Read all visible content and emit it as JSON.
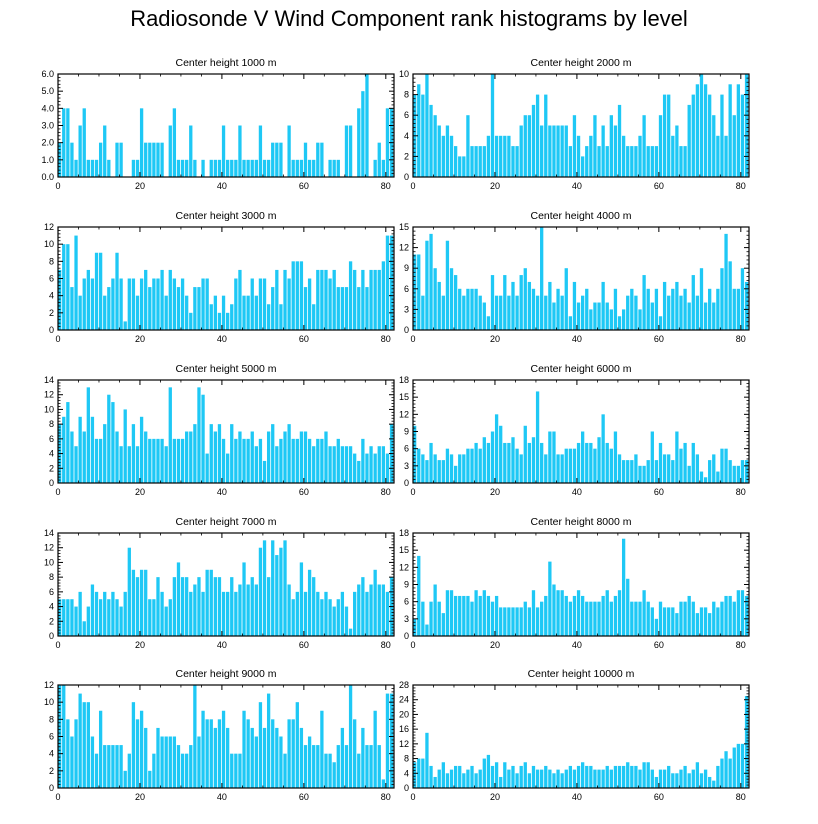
{
  "title": "Radiosonde V Wind Component rank histograms by level",
  "bar_color": "#1ec8f5",
  "chart_data": [
    {
      "type": "bar",
      "title": "Center height 1000 m",
      "xlim": [
        0,
        82
      ],
      "ylim": [
        0,
        6
      ],
      "yticks": [
        "0.0",
        "1.0",
        "2.0",
        "3.0",
        "4.0",
        "5.0",
        "6.0"
      ],
      "xticks": [
        0,
        20,
        40,
        60,
        80
      ],
      "values": [
        2,
        4,
        4,
        2,
        1,
        3,
        4,
        1,
        1,
        1,
        2,
        3,
        1,
        0,
        2,
        2,
        0,
        0,
        1,
        1,
        4,
        2,
        2,
        2,
        2,
        2,
        0,
        3,
        4,
        1,
        1,
        1,
        3,
        1,
        0,
        1,
        0,
        1,
        1,
        1,
        3,
        1,
        1,
        1,
        3,
        1,
        1,
        1,
        1,
        3,
        1,
        1,
        2,
        2,
        2,
        0,
        3,
        1,
        1,
        1,
        2,
        1,
        1,
        2,
        2,
        0,
        1,
        1,
        1,
        0,
        3,
        3,
        0,
        4,
        5,
        6,
        0,
        1,
        2,
        1,
        4,
        4
      ]
    },
    {
      "type": "bar",
      "title": "Center height 2000 m",
      "xlim": [
        0,
        82
      ],
      "ylim": [
        0,
        10
      ],
      "yticks": [
        "0",
        "2",
        "4",
        "6",
        "8",
        "10"
      ],
      "xticks": [
        0,
        20,
        40,
        60,
        80
      ],
      "values": [
        8,
        9,
        8,
        10,
        7,
        6,
        5,
        4,
        5,
        4,
        3,
        2,
        2,
        6,
        3,
        3,
        3,
        3,
        4,
        10,
        4,
        4,
        4,
        4,
        3,
        3,
        5,
        6,
        6,
        7,
        8,
        5,
        8,
        5,
        5,
        5,
        5,
        5,
        3,
        6,
        4,
        2,
        3,
        4,
        6,
        3,
        5,
        3,
        6,
        5,
        7,
        4,
        3,
        3,
        3,
        4,
        6,
        3,
        3,
        3,
        6,
        8,
        8,
        4,
        5,
        3,
        3,
        7,
        8,
        9,
        10,
        9,
        8,
        6,
        4,
        8,
        4,
        9,
        6,
        9,
        8,
        10
      ]
    },
    {
      "type": "bar",
      "title": "Center height 3000 m",
      "xlim": [
        0,
        82
      ],
      "ylim": [
        0,
        12
      ],
      "yticks": [
        "0",
        "2",
        "4",
        "6",
        "8",
        "10",
        "12"
      ],
      "xticks": [
        0,
        20,
        40,
        60,
        80
      ],
      "values": [
        7,
        10,
        10,
        5,
        11,
        4,
        6,
        7,
        6,
        9,
        9,
        4,
        5,
        6,
        9,
        6,
        1,
        6,
        6,
        4,
        6,
        7,
        5,
        6,
        6,
        7,
        4,
        7,
        6,
        5,
        6,
        4,
        2,
        5,
        5,
        6,
        6,
        3,
        4,
        2,
        4,
        2,
        3,
        6,
        7,
        4,
        4,
        6,
        4,
        6,
        6,
        3,
        5,
        7,
        3,
        7,
        6,
        8,
        8,
        8,
        5,
        6,
        3,
        7,
        7,
        7,
        6,
        7,
        5,
        5,
        5,
        8,
        7,
        5,
        7,
        5,
        7,
        7,
        7,
        8,
        11,
        11
      ]
    },
    {
      "type": "bar",
      "title": "Center height 4000 m",
      "xlim": [
        0,
        82
      ],
      "ylim": [
        0,
        15
      ],
      "yticks": [
        "0",
        "3",
        "6",
        "9",
        "12",
        "15"
      ],
      "xticks": [
        0,
        20,
        40,
        60,
        80
      ],
      "values": [
        11,
        11,
        5,
        13,
        14,
        9,
        7,
        5,
        13,
        9,
        8,
        6,
        5,
        6,
        6,
        6,
        5,
        4,
        2,
        8,
        5,
        5,
        8,
        5,
        7,
        5,
        8,
        9,
        7,
        6,
        5,
        15,
        5,
        7,
        4,
        6,
        5,
        9,
        2,
        7,
        4,
        5,
        6,
        3,
        4,
        4,
        7,
        4,
        3,
        6,
        2,
        3,
        5,
        6,
        5,
        3,
        8,
        6,
        4,
        6,
        2,
        7,
        5,
        6,
        7,
        5,
        6,
        4,
        8,
        5,
        9,
        4,
        6,
        4,
        6,
        9,
        14,
        10,
        6,
        6,
        9,
        7
      ]
    },
    {
      "type": "bar",
      "title": "Center height 5000 m",
      "xlim": [
        0,
        82
      ],
      "ylim": [
        0,
        14
      ],
      "yticks": [
        "0",
        "2",
        "4",
        "6",
        "8",
        "10",
        "12",
        "14"
      ],
      "xticks": [
        0,
        20,
        40,
        60,
        80
      ],
      "values": [
        8,
        9,
        11,
        7,
        5,
        9,
        7,
        13,
        9,
        6,
        6,
        8,
        12,
        11,
        7,
        5,
        10,
        5,
        8,
        5,
        9,
        7,
        6,
        6,
        6,
        6,
        5,
        13,
        6,
        6,
        6,
        7,
        7,
        8,
        13,
        12,
        4,
        8,
        7,
        8,
        6,
        4,
        8,
        6,
        7,
        6,
        6,
        7,
        5,
        6,
        3,
        7,
        8,
        5,
        6,
        7,
        8,
        6,
        6,
        7,
        7,
        6,
        5,
        6,
        6,
        7,
        5,
        5,
        6,
        5,
        5,
        5,
        4,
        3,
        6,
        4,
        5,
        4,
        5,
        5,
        4,
        8
      ]
    },
    {
      "type": "bar",
      "title": "Center height 6000 m",
      "xlim": [
        0,
        82
      ],
      "ylim": [
        0,
        18
      ],
      "yticks": [
        "0",
        "3",
        "6",
        "9",
        "12",
        "15",
        "18"
      ],
      "xticks": [
        0,
        20,
        40,
        60,
        80
      ],
      "values": [
        10,
        6,
        5,
        4,
        7,
        5,
        4,
        4,
        6,
        5,
        3,
        5,
        5,
        6,
        6,
        7,
        6,
        8,
        7,
        9,
        12,
        10,
        7,
        7,
        8,
        6,
        5,
        10,
        7,
        8,
        16,
        7,
        5,
        9,
        9,
        5,
        5,
        6,
        6,
        6,
        7,
        9,
        7,
        7,
        6,
        8,
        12,
        7,
        6,
        9,
        5,
        4,
        4,
        4,
        5,
        3,
        3,
        4,
        9,
        4,
        7,
        5,
        5,
        4,
        9,
        6,
        7,
        3,
        7,
        5,
        2,
        1,
        4,
        5,
        2,
        6,
        6,
        4,
        3,
        3,
        4,
        4
      ]
    },
    {
      "type": "bar",
      "title": "Center height 7000 m",
      "xlim": [
        0,
        82
      ],
      "ylim": [
        0,
        14
      ],
      "yticks": [
        "0",
        "2",
        "4",
        "6",
        "8",
        "10",
        "12",
        "14"
      ],
      "xticks": [
        0,
        20,
        40,
        60,
        80
      ],
      "values": [
        5,
        5,
        5,
        5,
        4,
        6,
        2,
        4,
        7,
        6,
        5,
        6,
        5,
        6,
        5,
        4,
        6,
        12,
        9,
        8,
        9,
        9,
        5,
        5,
        8,
        6,
        4,
        5,
        8,
        10,
        8,
        8,
        6,
        7,
        8,
        6,
        9,
        9,
        8,
        8,
        6,
        6,
        8,
        6,
        7,
        10,
        7,
        8,
        7,
        12,
        13,
        8,
        13,
        11,
        12,
        13,
        7,
        5,
        6,
        10,
        6,
        9,
        8,
        6,
        5,
        6,
        5,
        4,
        5,
        6,
        4,
        1,
        6,
        7,
        8,
        6,
        7,
        9,
        7,
        7,
        6,
        8
      ]
    },
    {
      "type": "bar",
      "title": "Center height 8000 m",
      "xlim": [
        0,
        82
      ],
      "ylim": [
        0,
        18
      ],
      "yticks": [
        "0",
        "3",
        "6",
        "9",
        "12",
        "15",
        "18"
      ],
      "xticks": [
        0,
        20,
        40,
        60,
        80
      ],
      "values": [
        3,
        14,
        6,
        2,
        6,
        9,
        6,
        4,
        8,
        8,
        7,
        7,
        7,
        7,
        6,
        8,
        7,
        8,
        7,
        6,
        7,
        5,
        5,
        5,
        5,
        5,
        5,
        6,
        5,
        8,
        5,
        6,
        7,
        13,
        9,
        8,
        8,
        7,
        6,
        7,
        8,
        7,
        6,
        6,
        6,
        6,
        7,
        8,
        6,
        7,
        8,
        17,
        10,
        6,
        6,
        6,
        8,
        6,
        5,
        3,
        6,
        5,
        5,
        5,
        4,
        6,
        6,
        7,
        6,
        4,
        5,
        5,
        4,
        6,
        5,
        6,
        7,
        7,
        6,
        8,
        8,
        7
      ]
    },
    {
      "type": "bar",
      "title": "Center height 9000 m",
      "xlim": [
        0,
        82
      ],
      "ylim": [
        0,
        12
      ],
      "yticks": [
        "0",
        "2",
        "4",
        "6",
        "8",
        "10",
        "12"
      ],
      "xticks": [
        0,
        20,
        40,
        60,
        80
      ],
      "values": [
        12,
        12,
        8,
        6,
        8,
        11,
        10,
        10,
        6,
        4,
        9,
        5,
        5,
        5,
        5,
        5,
        2,
        4,
        10,
        8,
        9,
        7,
        2,
        4,
        7,
        6,
        6,
        6,
        6,
        5,
        4,
        4,
        5,
        12,
        6,
        9,
        8,
        8,
        7,
        8,
        9,
        7,
        4,
        4,
        4,
        9,
        8,
        7,
        6,
        10,
        7,
        11,
        8,
        7,
        6,
        4,
        8,
        8,
        10,
        7,
        5,
        6,
        5,
        5,
        9,
        4,
        4,
        3,
        5,
        7,
        5,
        12,
        8,
        4,
        7,
        5,
        5,
        9,
        5,
        1,
        11,
        11
      ]
    },
    {
      "type": "bar",
      "title": "Center height 10000 m",
      "xlim": [
        0,
        82
      ],
      "ylim": [
        0,
        28
      ],
      "yticks": [
        "0",
        "4",
        "8",
        "12",
        "16",
        "20",
        "24",
        "28"
      ],
      "xticks": [
        0,
        20,
        40,
        60,
        80
      ],
      "values": [
        7,
        8,
        8,
        15,
        6,
        3,
        5,
        7,
        4,
        5,
        6,
        6,
        4,
        5,
        6,
        4,
        5,
        8,
        9,
        6,
        7,
        3,
        7,
        5,
        6,
        4,
        6,
        7,
        4,
        6,
        5,
        5,
        6,
        5,
        4,
        5,
        4,
        5,
        6,
        5,
        6,
        7,
        6,
        6,
        5,
        5,
        5,
        6,
        5,
        6,
        6,
        6,
        7,
        6,
        6,
        5,
        7,
        7,
        5,
        3,
        5,
        5,
        6,
        4,
        4,
        5,
        6,
        4,
        5,
        7,
        4,
        5,
        3,
        2,
        6,
        8,
        10,
        8,
        11,
        12,
        12,
        25
      ]
    }
  ]
}
